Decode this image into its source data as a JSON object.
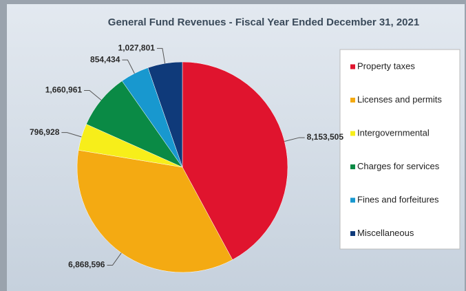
{
  "chart_data": {
    "type": "pie",
    "title": "General Fund Revenues - Fiscal Year Ended December 31, 2021",
    "categories": [
      "Property taxes",
      "Licenses and permits",
      "Intergovernmental",
      "Charges for services",
      "Fines and forfeitures",
      "Miscellaneous"
    ],
    "values": [
      8153505,
      6868596,
      796928,
      1660961,
      854434,
      1027801
    ],
    "value_labels": [
      "8,153,505",
      "6,868,596",
      "796,928",
      "1,660,961",
      "854,434",
      "1,027,801"
    ],
    "colors": [
      "#e0142e",
      "#f4aa12",
      "#f7ee1a",
      "#0a8a45",
      "#1898cf",
      "#0f3a7a"
    ],
    "legend": "right"
  }
}
